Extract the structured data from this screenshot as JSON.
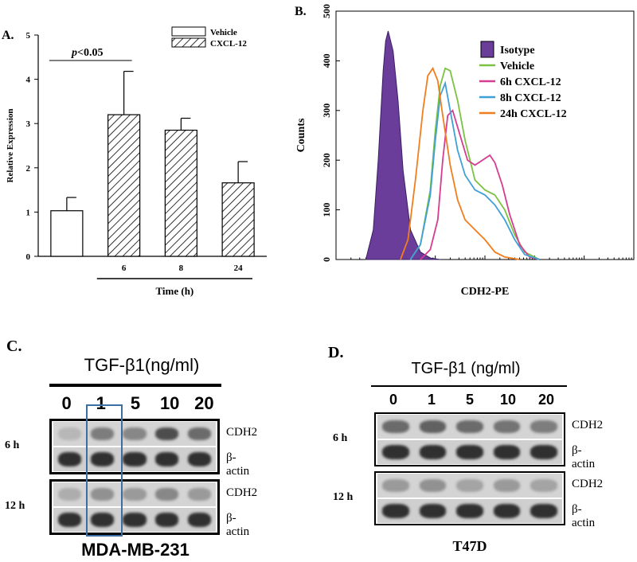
{
  "panels": {
    "a": {
      "letter": "A.",
      "chart_data": {
        "type": "bar",
        "ylabel": "Relative Expression",
        "xlabel": "Time (h)",
        "ylim": [
          0,
          5
        ],
        "yticks": [
          0,
          1,
          2,
          3,
          4,
          5
        ],
        "categories": [
          "",
          "6",
          "8",
          "24"
        ],
        "values": [
          1.03,
          3.2,
          2.85,
          1.66
        ],
        "errors": [
          0.3,
          0.98,
          0.27,
          0.48
        ],
        "fills": [
          "white",
          "hatched",
          "hatched",
          "hatched"
        ],
        "legend": [
          {
            "label": "Vehicle",
            "fill": "white"
          },
          {
            "label": "CXCL-12",
            "fill": "hatched"
          }
        ],
        "legend_position": "top-right",
        "annotation": {
          "italic": "p",
          "rest": "<0.05"
        }
      }
    },
    "b": {
      "letter": "B.",
      "chart_data": {
        "type": "area",
        "xlabel": "CDH2-PE",
        "ylabel": "Counts",
        "ylim": [
          0,
          500
        ],
        "yticks": [
          0,
          100,
          200,
          300,
          400,
          500
        ],
        "xlim": [
          0,
          6
        ],
        "series": [
          {
            "name": "Isotype",
            "color": "#6a3d9a",
            "filled": true,
            "x": [
              0.6,
              0.75,
              0.85,
              0.95,
              1.0,
              1.05,
              1.15,
              1.25,
              1.35,
              1.5,
              1.7,
              1.9,
              2.1
            ],
            "y": [
              0,
              60,
              200,
              380,
              440,
              460,
              420,
              320,
              180,
              60,
              15,
              3,
              0
            ]
          },
          {
            "name": "Vehicle",
            "color": "#7cc242",
            "filled": false,
            "x": [
              1.5,
              1.7,
              1.9,
              2.0,
              2.1,
              2.2,
              2.3,
              2.45,
              2.6,
              2.8,
              3.0,
              3.2,
              3.4,
              3.6,
              3.8,
              4.1
            ],
            "y": [
              0,
              30,
              140,
              260,
              350,
              385,
              380,
              320,
              240,
              160,
              140,
              130,
              100,
              50,
              15,
              0
            ]
          },
          {
            "name": "6h CXCL-12",
            "color": "#d63c8f",
            "filled": false,
            "x": [
              1.7,
              1.9,
              2.05,
              2.15,
              2.25,
              2.35,
              2.5,
              2.65,
              2.8,
              2.95,
              3.1,
              3.2,
              3.35,
              3.5,
              3.7,
              3.9,
              4.1
            ],
            "y": [
              0,
              20,
              80,
              200,
              290,
              300,
              250,
              200,
              190,
              200,
              210,
              195,
              150,
              90,
              30,
              5,
              0
            ]
          },
          {
            "name": "8h CXCL-12",
            "color": "#3fa0d8",
            "filled": false,
            "x": [
              1.5,
              1.7,
              1.9,
              2.0,
              2.1,
              2.2,
              2.3,
              2.45,
              2.6,
              2.8,
              3.0,
              3.2,
              3.4,
              3.6,
              3.8,
              4.1
            ],
            "y": [
              0,
              30,
              130,
              240,
              330,
              355,
              300,
              220,
              170,
              140,
              130,
              110,
              80,
              40,
              10,
              0
            ]
          },
          {
            "name": "24h CXCL-12",
            "color": "#f07e1e",
            "filled": false,
            "x": [
              1.3,
              1.45,
              1.6,
              1.75,
              1.85,
              1.95,
              2.05,
              2.15,
              2.3,
              2.45,
              2.6,
              2.8,
              3.0,
              3.2,
              3.4,
              3.7
            ],
            "y": [
              0,
              40,
              160,
              300,
              370,
              385,
              360,
              290,
              190,
              120,
              80,
              60,
              40,
              15,
              5,
              0
            ]
          }
        ],
        "legend_position": "top-left"
      }
    },
    "c": {
      "letter": "C.",
      "title": "TGF-β1(ng/ml)",
      "lanes": [
        "0",
        "1",
        "5",
        "10",
        "20"
      ],
      "rows": [
        {
          "time": "6 h",
          "bands": [
            "CDH2",
            "β-actin"
          ]
        },
        {
          "time": "12 h",
          "bands": [
            "CDH2",
            "β-actin"
          ]
        }
      ],
      "cell_line": "MDA-MB-231",
      "highlight_color": "#3a6ea5"
    },
    "d": {
      "letter": "D.",
      "title": "TGF-β1 (ng/ml)",
      "lanes": [
        "0",
        "1",
        "5",
        "10",
        "20"
      ],
      "rows": [
        {
          "time": "6 h",
          "bands": [
            "CDH2",
            "β-actin"
          ]
        },
        {
          "time": "12 h",
          "bands": [
            "CDH2",
            "β-actin"
          ]
        }
      ],
      "cell_line": "T47D"
    }
  }
}
